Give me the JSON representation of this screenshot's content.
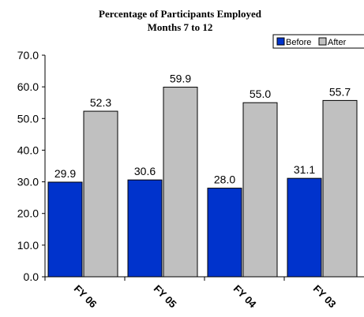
{
  "chart_data": {
    "type": "bar",
    "title": "Percentage of Participants Employed",
    "subtitle": "Months 7 to 12",
    "categories": [
      "FY 06",
      "FY 05",
      "FY 04",
      "FY 03"
    ],
    "series": [
      {
        "name": "Before",
        "values": [
          29.9,
          30.6,
          28.0,
          31.1
        ],
        "color": "#0033cc"
      },
      {
        "name": "After",
        "values": [
          52.3,
          59.9,
          55.0,
          55.7
        ],
        "color": "#c0c0c0"
      }
    ],
    "value_labels": [
      [
        "29.9",
        "30.6",
        "28.0",
        "31.1"
      ],
      [
        "52.3",
        "59.9",
        "55.0",
        "55.7"
      ]
    ],
    "ylim": [
      0,
      70
    ],
    "yticks": [
      "0.0",
      "10.0",
      "20.0",
      "30.0",
      "40.0",
      "50.0",
      "60.0",
      "70.0"
    ],
    "grid": false,
    "legend_position": "top-right"
  }
}
